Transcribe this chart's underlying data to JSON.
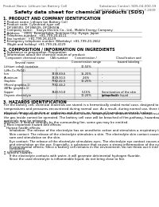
{
  "bg_color": "#ffffff",
  "header_left": "Product Name: Lithium Ion Battery Cell",
  "header_right": "Substance Control: SDS-04-000-19\nEstablishment / Revision: Dec.7.2009",
  "title": "Safety data sheet for chemical products (SDS)",
  "s1_title": "1. PRODUCT AND COMPANY IDENTIFICATION",
  "s1_lines": [
    "・ Product name: Lithium Ion Battery Cell",
    "・ Product code: Cylindrical-type cell",
    "   DF18650U, DF18650S, DF18650A",
    "・ Company name:    Sanyo Electric Co., Ltd., Mobile Energy Company",
    "・ Address:    2001  Kamionkubo, Suminoe-City, Hyogo, Japan",
    "・ Telephone number:  +81-799-20-4111",
    "・ Fax number:  +81-799-26-4129",
    "・ Emergency telephone number (Weekday) +81-799-20-2662",
    "   (Night and holiday) +81-799-26-4129"
  ],
  "s2_title": "2. COMPOSITION / INFORMATION ON INGREDIENTS",
  "s2_line1": "・ Substance or preparation: Preparation",
  "s2_line2": "・ Information about the chemical nature of product:",
  "th_comp": "Component chemical name",
  "th_comp2": "Several name",
  "th_cas": "CAS number",
  "th_conc": "Concentration /\nConcentration range",
  "th_class": "Classification and\nhazard labeling",
  "table_rows": [
    [
      "Lithium cobalt tantalate\n(LiMn-Co-PbO4)",
      "-",
      "30-50%",
      ""
    ],
    [
      "Iron",
      "7439-89-6",
      "15-25%",
      "-"
    ],
    [
      "Aluminum",
      "7429-90-5",
      "2-6%",
      "-"
    ],
    [
      "Graphite\n(Mixed graphite-1)\n(ATNo graphite-1)",
      "7782-42-5\n7782-44-2",
      "10-25%",
      "-"
    ],
    [
      "Copper",
      "7440-50-8",
      "5-15%",
      "Sensitization of the skin\ngroup No.2"
    ],
    [
      "Organic electrolyte",
      "-",
      "10-20%",
      "Inflammable liquid"
    ]
  ],
  "s3_title": "3. HAZARDS IDENTIFICATION",
  "s3_p1": "For the battery cell, chemical materials are stored in a hermetically sealed metal case, designed to withstand\ntemperatures and pressures-encountered during normal use. As a result, during normal use, there is no\nphysical danger of ignition or explosion and there is no danger of hazardous materials leakage.",
  "s3_p2": "However, if exposed to a fire, added mechanical shocks, decomposed, ambient electric short-circuity misuse,\nthe gas inside cannot be operated. The battery cell case will be breached of fire-pathway, hazardous\nmaterials may be released.",
  "s3_p3": "Moreover, if heated strongly by the surrounding fire, some gas may be emitted.",
  "s3_b1": "・ Most important hazard and effects:",
  "s3_b1a": "Human health effects:",
  "s3_b1b": "   Inhalation: The release of the electrolyte has an anesthetic action and stimulates a respiratory tract.\n   Skin contact: The release of the electrolyte stimulates a skin. The electrolyte skin contact causes a\n   sore and stimulation on the skin.\n   Eye contact: The release of the electrolyte stimulates eyes. The electrolyte eye contact causes a sore\n   and stimulation on the eye. Especially, a substance that causes a strong inflammation of the eye is\n   contained.",
  "s3_b1c": "   Environmental effects: Since a battery cell remains in the environment, do not throw out it into the\n   environment.",
  "s3_b2": "・ Specific hazards:",
  "s3_b2a": "   If the electrolyte contacts with water, it will generate detrimental hydrogen fluoride.\n   Since the used electrolyte is inflammable liquid, do not bring close to fire."
}
